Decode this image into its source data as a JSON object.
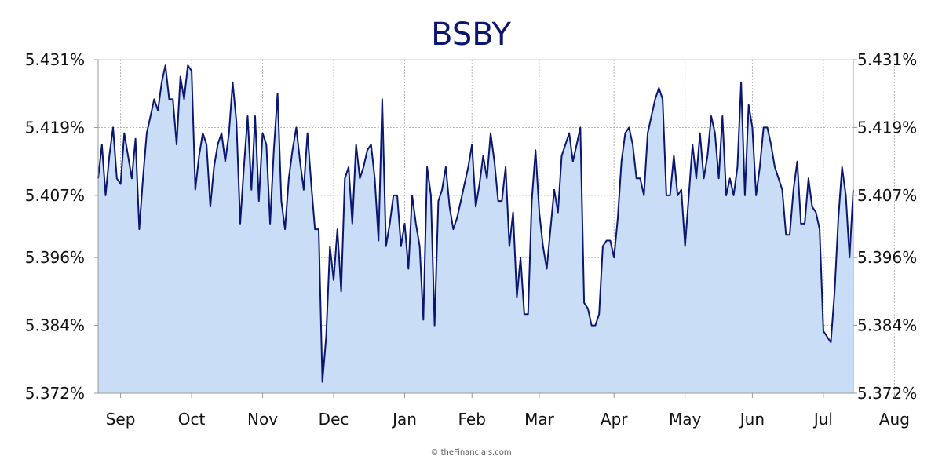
{
  "colors": {
    "line": "#0b1670",
    "area": "#c9def6",
    "grid": "#b5b5b5",
    "axis": "#999999",
    "title": "#0b1670",
    "text": "#111111"
  },
  "chart_data": {
    "type": "area",
    "title": "BSBY",
    "xlabel": "",
    "ylabel": "",
    "credit": "© theFinancials.com",
    "y_tick_labels": [
      "5.431%",
      "5.419%",
      "5.407%",
      "5.396%",
      "5.384%",
      "5.372%"
    ],
    "y_tick_values": [
      5.431,
      5.419,
      5.407,
      5.396,
      5.384,
      5.372
    ],
    "ylim": [
      5.372,
      5.431
    ],
    "month_labels": [
      "Sep",
      "Oct",
      "Nov",
      "Dec",
      "Jan",
      "Feb",
      "Mar",
      "Apr",
      "May",
      "Jun",
      "Jul",
      "Aug"
    ],
    "month_tick_index": [
      6,
      25,
      44,
      63,
      82,
      100,
      118,
      138,
      157,
      175,
      194,
      213
    ],
    "grid": true,
    "right_axis": true,
    "series": [
      {
        "values": [
          5.41,
          5.416,
          5.407,
          5.414,
          5.419,
          5.41,
          5.409,
          5.418,
          5.414,
          5.41,
          5.417,
          5.401,
          5.41,
          5.418,
          5.421,
          5.424,
          5.422,
          5.427,
          5.43,
          5.424,
          5.424,
          5.416,
          5.428,
          5.424,
          5.43,
          5.429,
          5.408,
          5.414,
          5.418,
          5.416,
          5.405,
          5.412,
          5.416,
          5.418,
          5.413,
          5.418,
          5.427,
          5.42,
          5.402,
          5.412,
          5.421,
          5.408,
          5.421,
          5.406,
          5.418,
          5.416,
          5.402,
          5.415,
          5.425,
          5.406,
          5.401,
          5.41,
          5.415,
          5.419,
          5.413,
          5.408,
          5.418,
          5.409,
          5.401,
          5.401,
          5.374,
          5.382,
          5.398,
          5.392,
          5.401,
          5.39,
          5.41,
          5.412,
          5.402,
          5.416,
          5.41,
          5.412,
          5.415,
          5.416,
          5.41,
          5.399,
          5.424,
          5.398,
          5.402,
          5.407,
          5.407,
          5.398,
          5.402,
          5.394,
          5.407,
          5.402,
          5.398,
          5.385,
          5.412,
          5.407,
          5.384,
          5.406,
          5.408,
          5.412,
          5.405,
          5.401,
          5.403,
          5.406,
          5.409,
          5.412,
          5.416,
          5.405,
          5.409,
          5.414,
          5.41,
          5.418,
          5.413,
          5.406,
          5.406,
          5.412,
          5.398,
          5.404,
          5.389,
          5.396,
          5.386,
          5.386,
          5.406,
          5.415,
          5.404,
          5.398,
          5.394,
          5.401,
          5.408,
          5.404,
          5.414,
          5.416,
          5.418,
          5.413,
          5.416,
          5.419,
          5.388,
          5.387,
          5.384,
          5.384,
          5.386,
          5.398,
          5.399,
          5.399,
          5.396,
          5.403,
          5.413,
          5.418,
          5.419,
          5.416,
          5.41,
          5.41,
          5.407,
          5.418,
          5.421,
          5.424,
          5.426,
          5.424,
          5.407,
          5.407,
          5.414,
          5.407,
          5.408,
          5.398,
          5.407,
          5.416,
          5.41,
          5.418,
          5.41,
          5.414,
          5.421,
          5.418,
          5.41,
          5.421,
          5.407,
          5.41,
          5.407,
          5.412,
          5.427,
          5.407,
          5.423,
          5.419,
          5.407,
          5.412,
          5.419,
          5.419,
          5.416,
          5.412,
          5.41,
          5.408,
          5.4,
          5.4,
          5.408,
          5.413,
          5.402,
          5.402,
          5.41,
          5.405,
          5.404,
          5.401,
          5.383,
          5.382,
          5.381,
          5.39,
          5.403,
          5.412,
          5.407,
          5.396,
          5.408
        ]
      }
    ]
  }
}
